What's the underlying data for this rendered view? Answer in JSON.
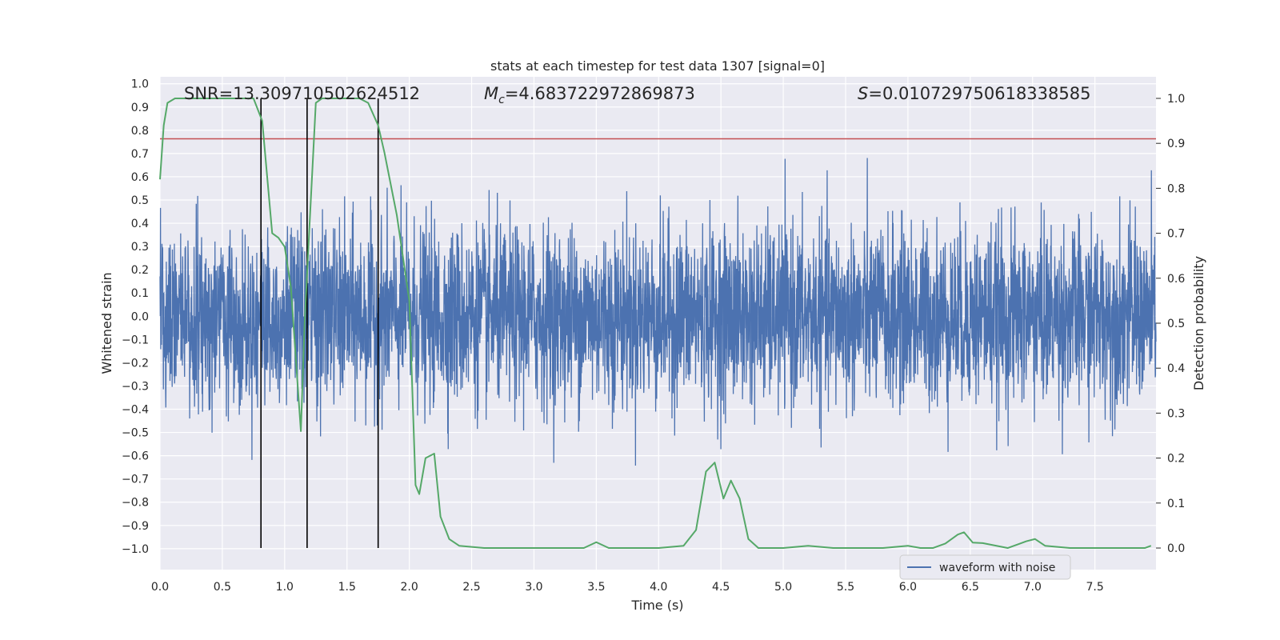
{
  "chart_data": {
    "type": "line",
    "title": "stats at each timestep for test data 1307 [signal=0]",
    "xlabel": "Time (s)",
    "ylabel": "Whitened strain",
    "y2label": "Detection probability",
    "xlim": [
      0.0,
      7.99
    ],
    "ylim": [
      -1.09,
      1.03
    ],
    "y2lim": [
      -0.048,
      1.048
    ],
    "xticks": [
      "0.0",
      "0.5",
      "1.0",
      "1.5",
      "2.0",
      "2.5",
      "3.0",
      "3.5",
      "4.0",
      "4.5",
      "5.0",
      "5.5",
      "6.0",
      "6.5",
      "7.0",
      "7.5"
    ],
    "yticks": [
      "1.0",
      "0.9",
      "0.8",
      "0.7",
      "0.6",
      "0.5",
      "0.4",
      "0.3",
      "0.2",
      "0.1",
      "0.0",
      "-0.1",
      "-0.2",
      "-0.3",
      "-0.4",
      "-0.5",
      "-0.6",
      "-0.7",
      "-0.8",
      "-0.9",
      "-1.0"
    ],
    "y2ticks": [
      "1.0",
      "0.9",
      "0.8",
      "0.7",
      "0.6",
      "0.5",
      "0.4",
      "0.3",
      "0.2",
      "0.1",
      "0.0"
    ],
    "grid": true,
    "legend_position": "lower-right",
    "annotations": {
      "snr": "SNR=13.309710502624512",
      "mc_label": "M",
      "mc_sub": "c",
      "mc_value": "=4.683722972869873",
      "s_label": "S",
      "s_value": "=0.010729750618338585"
    },
    "series": [
      {
        "name": "waveform with noise",
        "axis": "left",
        "color": "#4c72b0",
        "note": "dense noisy strain waveform, roughly within -0.85 to 0.95",
        "band": {
          "x_start": 0.0,
          "x_end": 7.99,
          "upper_core": 0.35,
          "lower_core": -0.42,
          "spike_max": 0.95,
          "spike_min": -0.98
        }
      },
      {
        "axis": "right",
        "color": "#55a868",
        "x": [
          0.0,
          0.03,
          0.06,
          0.12,
          0.2,
          0.4,
          0.6,
          0.75,
          0.82,
          0.9,
          0.95,
          1.0,
          1.05,
          1.1,
          1.13,
          1.16,
          1.2,
          1.25,
          1.3,
          1.4,
          1.5,
          1.6,
          1.67,
          1.75,
          1.8,
          1.9,
          2.0,
          2.05,
          2.08,
          2.13,
          2.2,
          2.25,
          2.32,
          2.4,
          2.6,
          2.8,
          3.0,
          3.2,
          3.4,
          3.5,
          3.6,
          3.8,
          4.0,
          4.2,
          4.3,
          4.38,
          4.45,
          4.52,
          4.58,
          4.65,
          4.72,
          4.8,
          5.0,
          5.2,
          5.4,
          5.6,
          5.8,
          6.0,
          6.1,
          6.2,
          6.3,
          6.4,
          6.45,
          6.52,
          6.6,
          6.8,
          6.95,
          7.02,
          7.1,
          7.3,
          7.5,
          7.7,
          7.9,
          7.95
        ],
        "y": [
          0.82,
          0.94,
          0.99,
          1.0,
          1.0,
          1.0,
          1.0,
          1.0,
          0.95,
          0.7,
          0.69,
          0.67,
          0.58,
          0.38,
          0.26,
          0.5,
          0.72,
          0.99,
          1.0,
          1.0,
          1.0,
          1.0,
          0.99,
          0.94,
          0.88,
          0.74,
          0.55,
          0.14,
          0.12,
          0.2,
          0.21,
          0.07,
          0.02,
          0.005,
          0.0,
          0.0,
          0.0,
          0.0,
          0.0,
          0.013,
          0.0,
          0.0,
          0.0,
          0.005,
          0.04,
          0.17,
          0.19,
          0.11,
          0.15,
          0.11,
          0.02,
          0.0,
          0.0,
          0.005,
          0.0,
          0.0,
          0.0,
          0.005,
          0.0,
          0.0,
          0.01,
          0.03,
          0.035,
          0.012,
          0.011,
          0.0,
          0.015,
          0.02,
          0.005,
          0.0,
          0.0,
          0.0,
          0.0,
          0.005
        ]
      }
    ],
    "horizontal_lines": [
      {
        "axis": "right",
        "y": 0.91,
        "color": "#c44e52"
      }
    ],
    "vertical_lines": [
      {
        "x": 0.81,
        "color": "#000000"
      },
      {
        "x": 1.18,
        "color": "#000000"
      },
      {
        "x": 1.75,
        "color": "#000000"
      }
    ]
  }
}
